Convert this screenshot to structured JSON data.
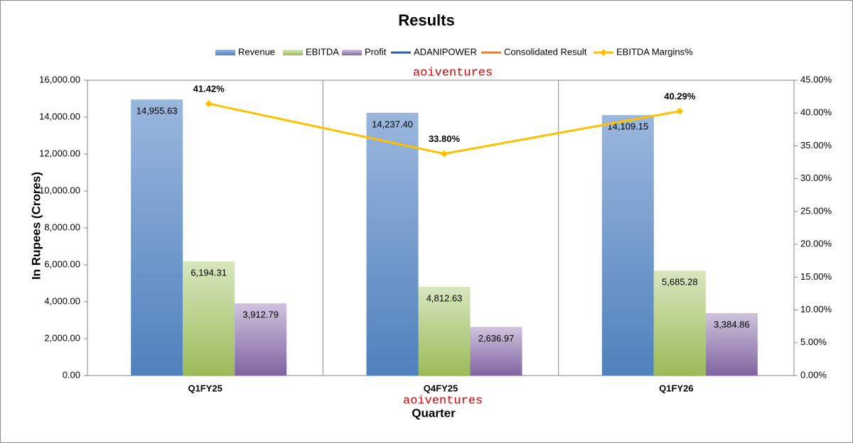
{
  "chart_data": {
    "type": "bar",
    "title": "Results",
    "x_label": "Quarter",
    "y_label": "In Rupees (Crores)",
    "annotations": [
      "aoiventures",
      "aoiventures"
    ],
    "categories": [
      "Q1FY25",
      "Q4FY25",
      "Q1FY26"
    ],
    "series": [
      {
        "name": "Revenue",
        "type": "bar",
        "color": "#4f81bd",
        "values": [
          14955.63,
          14237.4,
          14109.15
        ],
        "value_labels": [
          "14,955.63",
          "14,237.40",
          "14,109.15"
        ]
      },
      {
        "name": "EBITDA",
        "type": "bar",
        "color": "#9bbb59",
        "values": [
          6194.31,
          4812.63,
          5685.28
        ],
        "value_labels": [
          "6,194.31",
          "4,812.63",
          "5,685.28"
        ]
      },
      {
        "name": "Profit",
        "type": "bar",
        "color": "#8064a2",
        "values": [
          3912.79,
          2636.97,
          3384.86
        ],
        "value_labels": [
          "3,912.79",
          "2,636.97",
          "3,384.86"
        ]
      },
      {
        "name": "ADANIPOWER",
        "type": "line",
        "color": "#2e5c9e",
        "values": [
          null,
          null,
          null
        ]
      },
      {
        "name": "Consolidated Result",
        "type": "line",
        "color": "#ed7d31",
        "values": [
          null,
          null,
          null
        ]
      },
      {
        "name": "EBITDA Margins%",
        "type": "line",
        "axis": "y2",
        "color": "#ffc000",
        "values": [
          41.42,
          33.8,
          40.29
        ],
        "value_labels": [
          "41.42%",
          "33.80%",
          "40.29%"
        ]
      }
    ],
    "ylim": [
      0,
      16000
    ],
    "yticks": [
      {
        "value": 0,
        "label": "0.00"
      },
      {
        "value": 2000,
        "label": "2,000.00"
      },
      {
        "value": 4000,
        "label": "4,000.00"
      },
      {
        "value": 6000,
        "label": "6,000.00"
      },
      {
        "value": 8000,
        "label": "8,000.00"
      },
      {
        "value": 10000,
        "label": "10,000.00"
      },
      {
        "value": 12000,
        "label": "12,000.00"
      },
      {
        "value": 14000,
        "label": "14,000.00"
      },
      {
        "value": 16000,
        "label": "16,000.00"
      }
    ],
    "y2lim": [
      0,
      45
    ],
    "y2ticks": [
      {
        "value": 0,
        "label": "0.00%"
      },
      {
        "value": 5,
        "label": "5.00%"
      },
      {
        "value": 10,
        "label": "10.00%"
      },
      {
        "value": 15,
        "label": "15.00%"
      },
      {
        "value": 20,
        "label": "20.00%"
      },
      {
        "value": 25,
        "label": "25.00%"
      },
      {
        "value": 30,
        "label": "30.00%"
      },
      {
        "value": 35,
        "label": "35.00%"
      },
      {
        "value": 40,
        "label": "40.00%"
      },
      {
        "value": 45,
        "label": "45.00%"
      }
    ],
    "legend": "top"
  }
}
